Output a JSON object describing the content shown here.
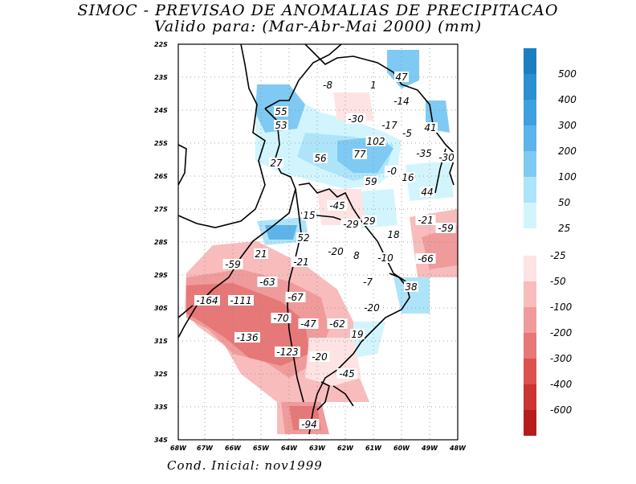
{
  "title_line1": "SIMOC - PREVISAO DE ANOMALIAS DE PRECIPITACAO",
  "title_line2": "Valido para: (Mar-Abr-Mai 2000) (mm)",
  "footer": "Cond. Inicial: nov1999",
  "y_ticks": [
    "22S",
    "23S",
    "24S",
    "25S",
    "26S",
    "27S",
    "28S",
    "29S",
    "30S",
    "31S",
    "32S",
    "33S",
    "34S"
  ],
  "x_ticks": [
    "68W",
    "67W",
    "66W",
    "65W",
    "64W",
    "63W",
    "62W",
    "61W",
    "60W",
    "49W",
    "48W"
  ],
  "legend": {
    "positive": [
      {
        "label": "500",
        "color": "#1a7fc1"
      },
      {
        "label": "400",
        "color": "#2b8fd0"
      },
      {
        "label": "300",
        "color": "#3ea0df"
      },
      {
        "label": "200",
        "color": "#5cb4ea"
      },
      {
        "label": "100",
        "color": "#7fcaf2"
      },
      {
        "label": "50",
        "color": "#aee4fa"
      },
      {
        "label": "25",
        "color": "#d2f5fd"
      }
    ],
    "negative": [
      {
        "label": "-25",
        "color": "#fde3e3"
      },
      {
        "label": "-50",
        "color": "#f8bcbc"
      },
      {
        "label": "-100",
        "color": "#f09b9b"
      },
      {
        "label": "-200",
        "color": "#e67878"
      },
      {
        "label": "-300",
        "color": "#dc5050"
      },
      {
        "label": "-400",
        "color": "#cc3333"
      },
      {
        "label": "-600",
        "color": "#b71c1c"
      }
    ]
  },
  "contour_labels": [
    "-8",
    "1",
    "47",
    "-14",
    "55",
    "53",
    "-30",
    "-17",
    "-5",
    "41",
    "102",
    "77",
    "56",
    "27",
    "-35",
    "-30",
    "-0",
    "16",
    "59",
    "44",
    "-45",
    "15",
    "-29",
    "29",
    "-21",
    "-59",
    "52",
    "18",
    "-59",
    "21",
    "-21",
    "-20",
    "8",
    "-10",
    "-66",
    "-63",
    "-7",
    "38",
    "-164",
    "-111",
    "-67",
    "-20",
    "-70",
    "-47",
    "-62",
    "19",
    "-136",
    "-123",
    "-20",
    "-45",
    "-94"
  ]
}
